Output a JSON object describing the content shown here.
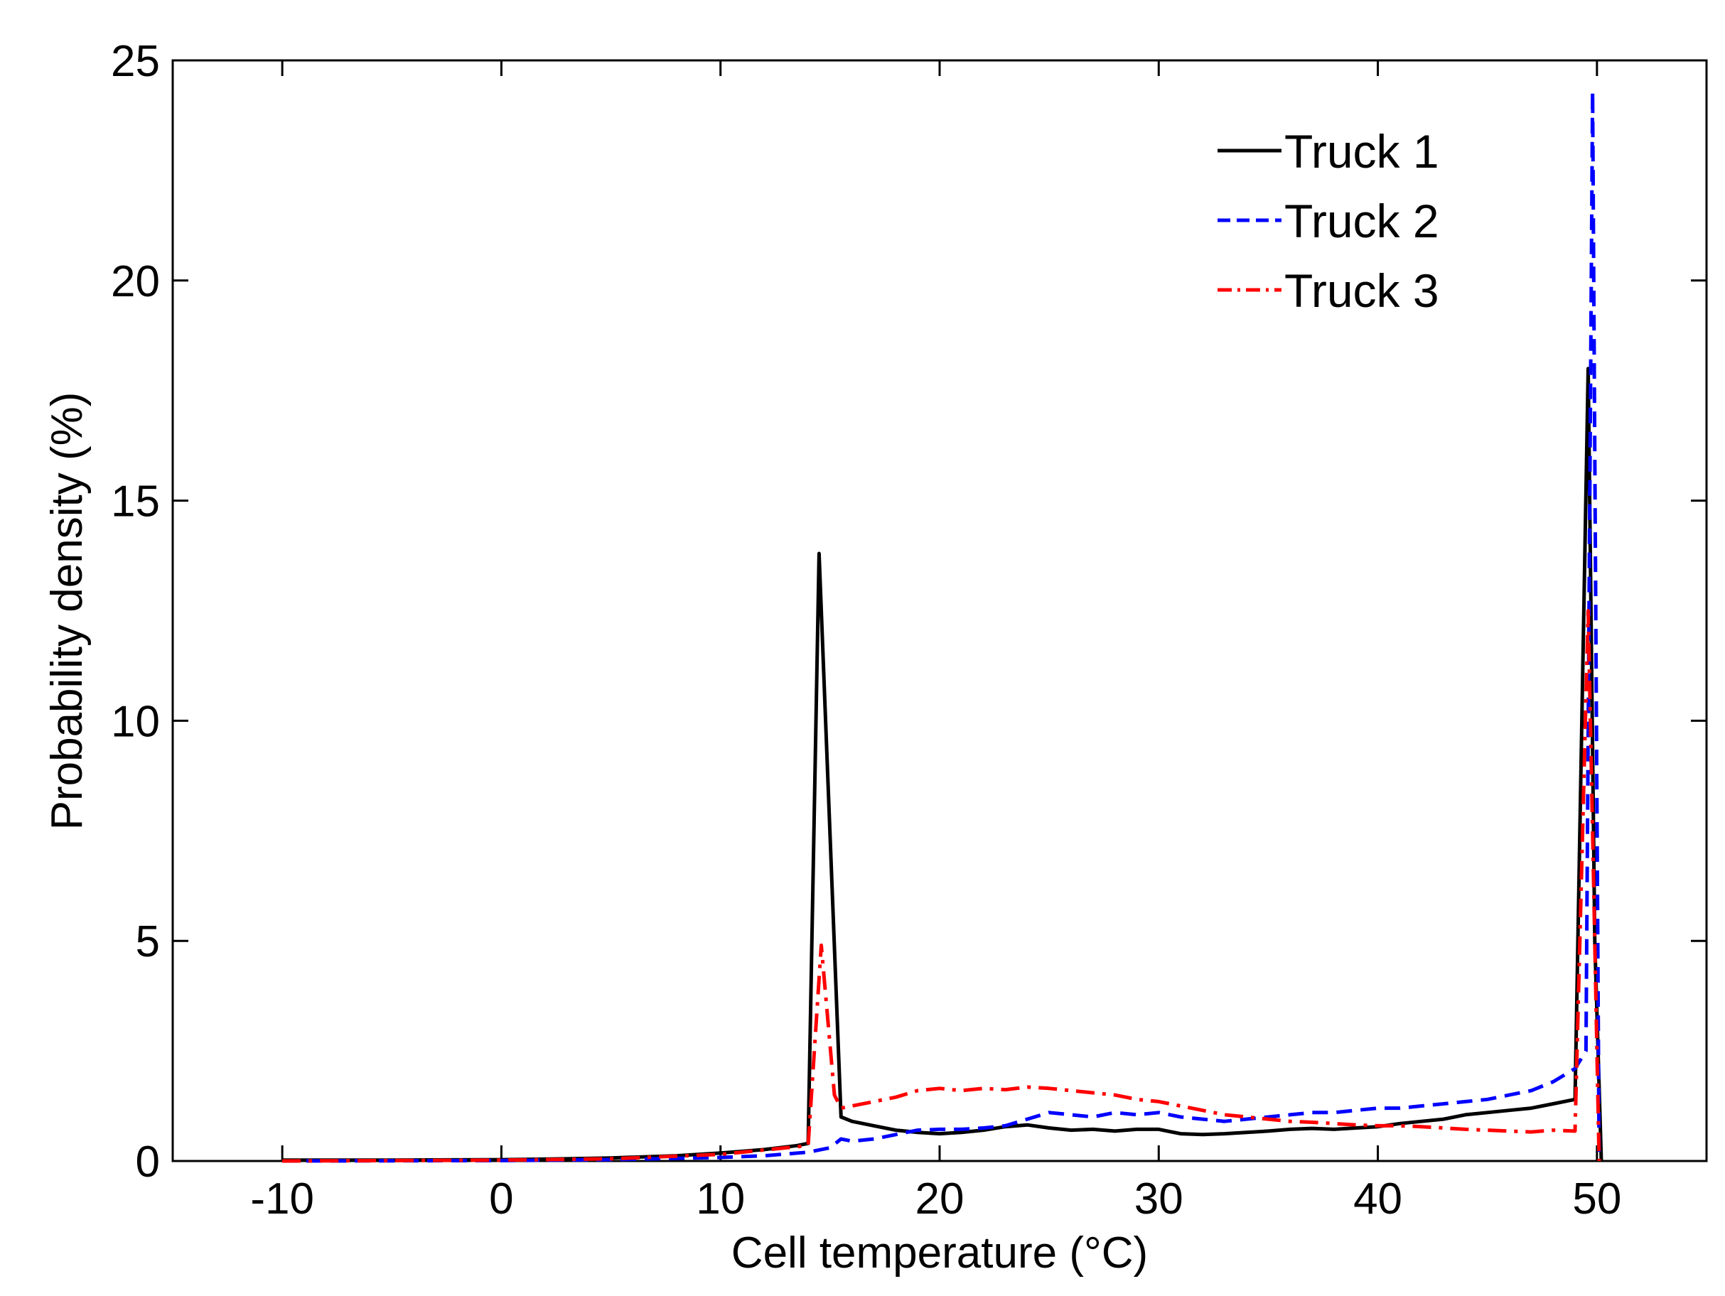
{
  "chart_data": {
    "type": "line",
    "xlabel": "Cell temperature (°C)",
    "ylabel": "Probability density (%)",
    "xlim": [
      -15,
      55
    ],
    "ylim": [
      0,
      25
    ],
    "xticks": [
      "-10",
      "0",
      "10",
      "20",
      "30",
      "40",
      "50"
    ],
    "yticks": [
      "0",
      "5",
      "10",
      "15",
      "20",
      "25"
    ],
    "grid": false,
    "legend_position": "top-right",
    "series": [
      {
        "name": "Truck 1",
        "color": "#000000",
        "style": "solid",
        "points": [
          [
            -10,
            0.02
          ],
          [
            -5,
            0.02
          ],
          [
            0,
            0.03
          ],
          [
            3,
            0.05
          ],
          [
            5,
            0.07
          ],
          [
            8,
            0.12
          ],
          [
            10,
            0.18
          ],
          [
            12,
            0.26
          ],
          [
            13.5,
            0.35
          ],
          [
            14,
            0.4
          ],
          [
            14.5,
            13.8
          ],
          [
            15.5,
            1.0
          ],
          [
            16,
            0.9
          ],
          [
            17,
            0.8
          ],
          [
            18,
            0.7
          ],
          [
            19,
            0.65
          ],
          [
            20,
            0.62
          ],
          [
            21,
            0.65
          ],
          [
            22,
            0.7
          ],
          [
            23,
            0.78
          ],
          [
            24,
            0.82
          ],
          [
            25,
            0.75
          ],
          [
            26,
            0.7
          ],
          [
            27,
            0.72
          ],
          [
            28,
            0.68
          ],
          [
            29,
            0.72
          ],
          [
            30,
            0.72
          ],
          [
            31,
            0.62
          ],
          [
            32,
            0.6
          ],
          [
            33,
            0.62
          ],
          [
            34,
            0.65
          ],
          [
            35,
            0.68
          ],
          [
            36,
            0.72
          ],
          [
            37,
            0.74
          ],
          [
            38,
            0.72
          ],
          [
            39,
            0.75
          ],
          [
            40,
            0.78
          ],
          [
            41,
            0.85
          ],
          [
            42,
            0.9
          ],
          [
            43,
            0.95
          ],
          [
            44,
            1.05
          ],
          [
            45,
            1.1
          ],
          [
            46,
            1.15
          ],
          [
            47,
            1.2
          ],
          [
            48,
            1.3
          ],
          [
            49,
            1.4
          ],
          [
            49.6,
            18.0
          ],
          [
            49.9,
            5.0
          ],
          [
            50.2,
            0.0
          ]
        ]
      },
      {
        "name": "Truck 2",
        "color": "#0000ff",
        "style": "dashed",
        "points": [
          [
            -10,
            0.0
          ],
          [
            0,
            0.01
          ],
          [
            5,
            0.03
          ],
          [
            10,
            0.08
          ],
          [
            12,
            0.12
          ],
          [
            14,
            0.2
          ],
          [
            15,
            0.3
          ],
          [
            15.5,
            0.5
          ],
          [
            16,
            0.45
          ],
          [
            17,
            0.5
          ],
          [
            18,
            0.6
          ],
          [
            19,
            0.7
          ],
          [
            20,
            0.72
          ],
          [
            21,
            0.72
          ],
          [
            22,
            0.75
          ],
          [
            23,
            0.8
          ],
          [
            24,
            0.95
          ],
          [
            25,
            1.1
          ],
          [
            26,
            1.05
          ],
          [
            27,
            1.0
          ],
          [
            28,
            1.1
          ],
          [
            29,
            1.05
          ],
          [
            30,
            1.1
          ],
          [
            31,
            1.0
          ],
          [
            32,
            0.95
          ],
          [
            33,
            0.9
          ],
          [
            34,
            0.95
          ],
          [
            35,
            1.0
          ],
          [
            36,
            1.05
          ],
          [
            37,
            1.1
          ],
          [
            38,
            1.1
          ],
          [
            39,
            1.15
          ],
          [
            40,
            1.2
          ],
          [
            41,
            1.2
          ],
          [
            42,
            1.25
          ],
          [
            43,
            1.3
          ],
          [
            44,
            1.35
          ],
          [
            45,
            1.4
          ],
          [
            46,
            1.5
          ],
          [
            47,
            1.6
          ],
          [
            48,
            1.8
          ],
          [
            49,
            2.1
          ],
          [
            49.5,
            2.5
          ],
          [
            49.8,
            24.3
          ],
          [
            50.1,
            0.0
          ]
        ]
      },
      {
        "name": "Truck 3",
        "color": "#ff0000",
        "style": "dashdot",
        "points": [
          [
            -10,
            0.0
          ],
          [
            0,
            0.02
          ],
          [
            5,
            0.05
          ],
          [
            10,
            0.15
          ],
          [
            13,
            0.3
          ],
          [
            14,
            0.35
          ],
          [
            14.6,
            4.9
          ],
          [
            15.2,
            1.5
          ],
          [
            15.5,
            1.2
          ],
          [
            16,
            1.25
          ],
          [
            17,
            1.35
          ],
          [
            18,
            1.45
          ],
          [
            19,
            1.6
          ],
          [
            20,
            1.65
          ],
          [
            21,
            1.6
          ],
          [
            22,
            1.65
          ],
          [
            23,
            1.62
          ],
          [
            24,
            1.68
          ],
          [
            25,
            1.65
          ],
          [
            26,
            1.6
          ],
          [
            27,
            1.55
          ],
          [
            28,
            1.5
          ],
          [
            29,
            1.4
          ],
          [
            30,
            1.35
          ],
          [
            31,
            1.25
          ],
          [
            32,
            1.15
          ],
          [
            33,
            1.05
          ],
          [
            34,
            1.0
          ],
          [
            35,
            0.95
          ],
          [
            36,
            0.9
          ],
          [
            37,
            0.88
          ],
          [
            38,
            0.85
          ],
          [
            39,
            0.82
          ],
          [
            40,
            0.8
          ],
          [
            41,
            0.8
          ],
          [
            42,
            0.78
          ],
          [
            43,
            0.75
          ],
          [
            44,
            0.72
          ],
          [
            45,
            0.7
          ],
          [
            46,
            0.68
          ],
          [
            47,
            0.66
          ],
          [
            48,
            0.7
          ],
          [
            49,
            0.68
          ],
          [
            49.6,
            12.5
          ],
          [
            50.1,
            0.0
          ]
        ]
      }
    ]
  }
}
